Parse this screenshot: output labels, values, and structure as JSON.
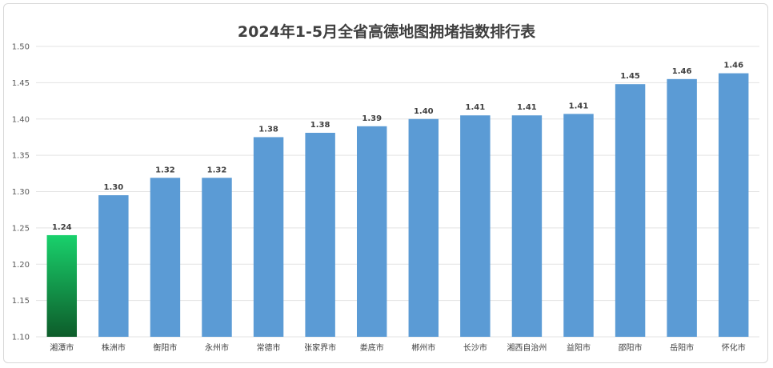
{
  "chart_data": {
    "type": "bar",
    "title": "2024年1-5月全省高德地图拥堵指数排行表",
    "xlabel": "",
    "ylabel": "",
    "categories": [
      "湘潭市",
      "株洲市",
      "衡阳市",
      "永州市",
      "常德市",
      "张家界市",
      "娄底市",
      "郴州市",
      "长沙市",
      "湘西自治州",
      "益阳市",
      "邵阳市",
      "岳阳市",
      "怀化市"
    ],
    "values": [
      1.24,
      1.295,
      1.319,
      1.319,
      1.375,
      1.381,
      1.39,
      1.4,
      1.405,
      1.405,
      1.407,
      1.448,
      1.455,
      1.463
    ],
    "data_labels": [
      "1.24",
      "1.30",
      "1.32",
      "1.32",
      "1.38",
      "1.38",
      "1.39",
      "1.40",
      "1.41",
      "1.41",
      "1.41",
      "1.45",
      "1.46",
      "1.46"
    ],
    "yticks": [
      "1.10",
      "1.15",
      "1.20",
      "1.25",
      "1.30",
      "1.35",
      "1.40",
      "1.45",
      "1.50"
    ],
    "ylim": [
      1.1,
      1.5
    ],
    "grid": true,
    "legend": "none",
    "colors": {
      "bar": "#5b9bd5",
      "highlight_top": "#19d16c",
      "highlight_bottom": "#0d5c2a",
      "highlight_index": 0
    }
  }
}
